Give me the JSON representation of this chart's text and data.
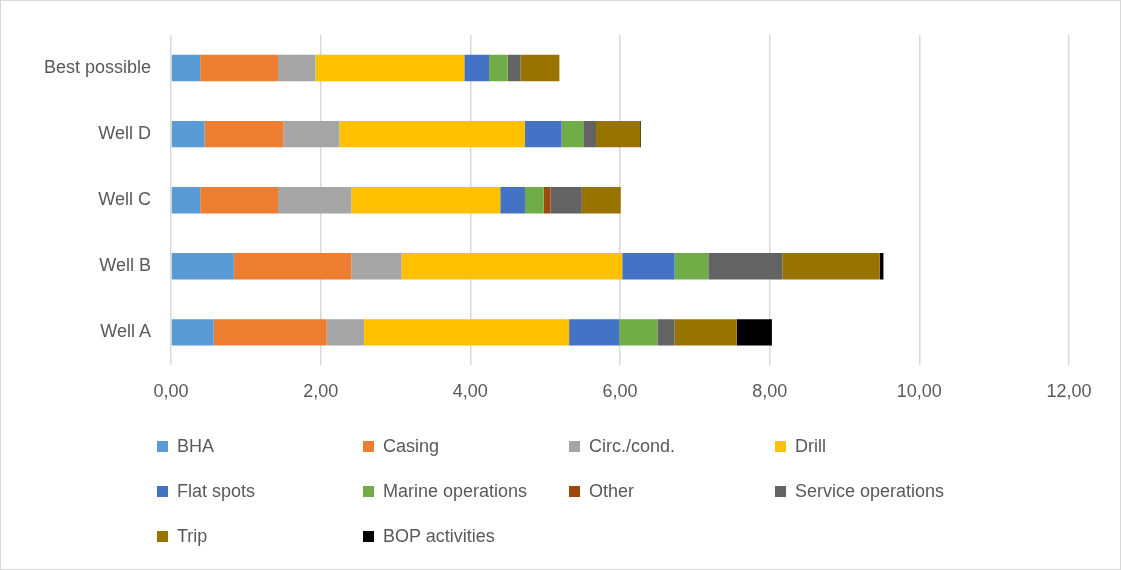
{
  "chart_data": {
    "type": "bar",
    "orientation": "horizontal",
    "stacked": true,
    "categories": [
      "Best possible",
      "Well D",
      "Well C",
      "Well B",
      "Well A"
    ],
    "series": [
      {
        "name": "BHA",
        "color": "#5b9bd5",
        "values": [
          0.39,
          0.45,
          0.39,
          0.84,
          0.57
        ]
      },
      {
        "name": "Casing",
        "color": "#ed7d31",
        "values": [
          1.04,
          1.05,
          1.04,
          1.57,
          1.51
        ]
      },
      {
        "name": "Circ./cond.",
        "color": "#a5a5a5",
        "values": [
          0.5,
          0.75,
          0.98,
          0.67,
          0.5
        ]
      },
      {
        "name": "Drill",
        "color": "#ffc000",
        "values": [
          1.99,
          2.48,
          1.99,
          2.95,
          2.74
        ]
      },
      {
        "name": "Flat spots",
        "color": "#4472c4",
        "values": [
          0.33,
          0.49,
          0.33,
          0.7,
          0.67
        ]
      },
      {
        "name": "Marine operations",
        "color": "#70ad47",
        "values": [
          0.25,
          0.29,
          0.25,
          0.45,
          0.51
        ]
      },
      {
        "name": "Other",
        "color": "#9e480e",
        "values": [
          null,
          null,
          0.09,
          null,
          null
        ]
      },
      {
        "name": "Service operations",
        "color": "#636363",
        "values": [
          0.17,
          0.17,
          0.42,
          0.99,
          0.23
        ]
      },
      {
        "name": "Trip",
        "color": "#997300",
        "values": [
          0.52,
          0.59,
          0.52,
          1.3,
          0.83
        ]
      },
      {
        "name": "BOP activities",
        "color": "#000000",
        "values": [
          null,
          0.01,
          null,
          0.05,
          0.47
        ]
      }
    ],
    "xlim": [
      0,
      12
    ],
    "xticks": [
      {
        "value": 0,
        "label": "0,00"
      },
      {
        "value": 2,
        "label": "2,00"
      },
      {
        "value": 4,
        "label": "4,00"
      },
      {
        "value": 6,
        "label": "6,00"
      },
      {
        "value": 8,
        "label": "8,00"
      },
      {
        "value": 10,
        "label": "10,00"
      },
      {
        "value": 12,
        "label": "12,00"
      }
    ],
    "grid": "x",
    "legend": "bottom"
  }
}
